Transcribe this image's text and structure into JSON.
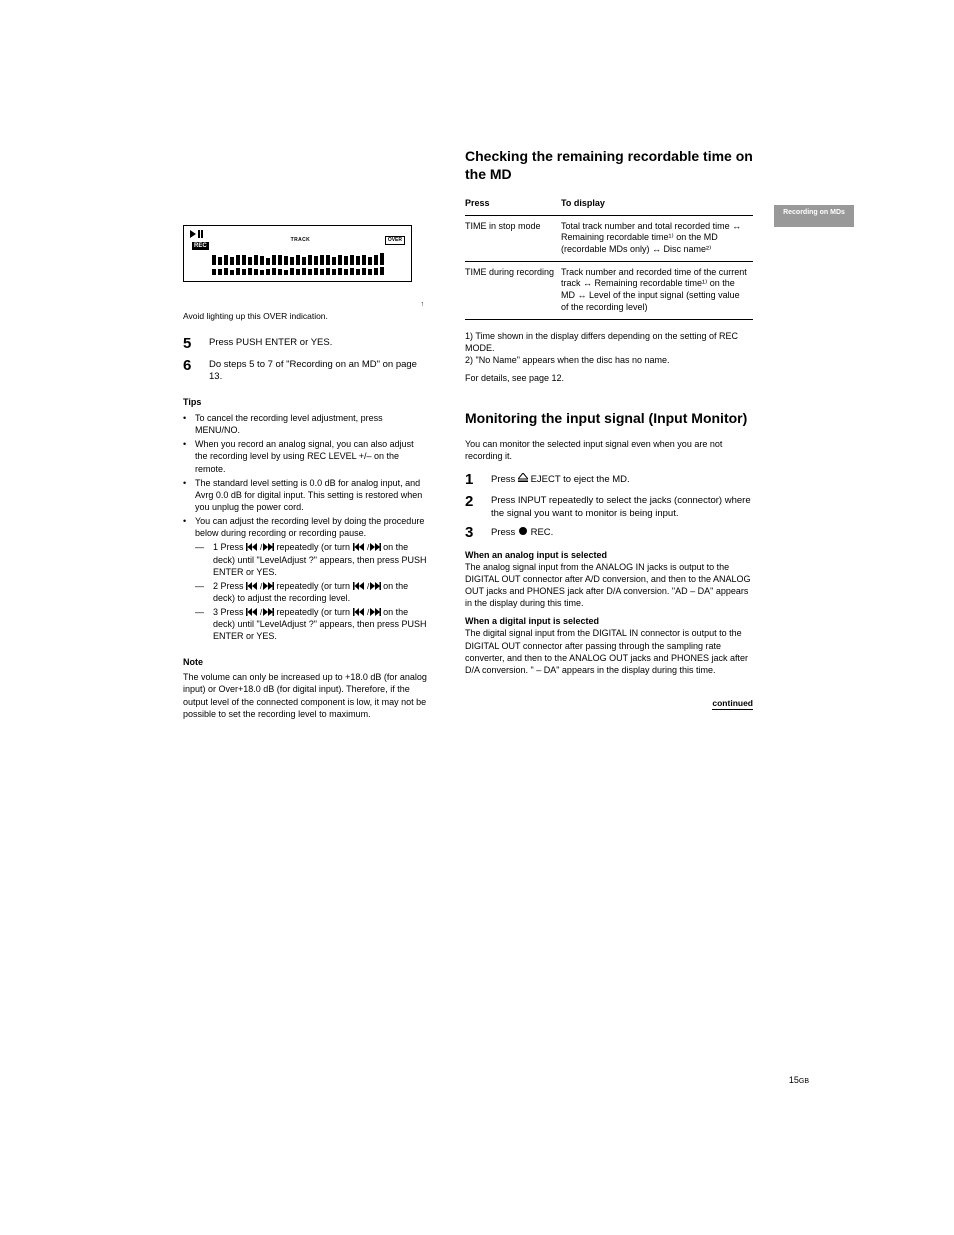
{
  "page_number": "15",
  "page_suffix": "GB",
  "edge_tab_label": "Recording on MDs",
  "continued_label": "continued",
  "lcd": {
    "track_label": "TRACK",
    "rec_label": "REC",
    "over_label": "OVER",
    "over_caption": "Avoid lighting up this OVER indication.",
    "bar_heights_row1": [
      10,
      8,
      10,
      8,
      10,
      10,
      8,
      10,
      9,
      7,
      10,
      10,
      9,
      8,
      10,
      8,
      10,
      9,
      10,
      10,
      8,
      10,
      9,
      10,
      9,
      10,
      8,
      10,
      12
    ],
    "bar_heights_row2": [
      6,
      6,
      7,
      5,
      7,
      6,
      7,
      6,
      5,
      6,
      7,
      6,
      5,
      7,
      6,
      7,
      6,
      7,
      6,
      7,
      6,
      7,
      6,
      7,
      6,
      7,
      6,
      7,
      8
    ]
  },
  "left": {
    "steps": [
      {
        "num": "5",
        "text": "Press PUSH ENTER or YES."
      },
      {
        "num": "6",
        "text": "Do steps 5 to 7 of \"Recording on an MD\" on page 13."
      }
    ],
    "tips_head": "Tips",
    "tips": [
      "To cancel the recording level adjustment, press MENU/NO.",
      "When you record an analog signal, you can also adjust the recording level by using REC LEVEL +/– on the remote.",
      "The standard level setting is 0.0 dB for analog input, and Avrg 0.0 dB for digital input. This setting is restored when you unplug the power cord.",
      "You can adjust the recording level by doing the procedure below during recording or recording pause."
    ],
    "dial_steps": [
      {
        "pre": "1 Press ",
        "post1": " repeatedly (or turn ",
        "post2": " on the deck) until \"LevelAdjust ?\" appears, then press PUSH ENTER or YES."
      },
      {
        "pre": "2 Press ",
        "post1": " repeatedly (or turn ",
        "post2": " on the deck) to adjust the recording level."
      },
      {
        "pre": "3 Press ",
        "post1": " repeatedly (or turn ",
        "post2": " on the deck) until \"LevelAdjust ?\" appears, then press PUSH ENTER or YES."
      }
    ],
    "note_head": "Note",
    "note_body": "The volume can only be increased up to +18.0 dB (for analog input) or Over+18.0 dB (for digital input). Therefore, if the output level of the connected component is low, it may not be possible to set the recording level to maximum."
  },
  "right": {
    "heading1": "Checking the remaining recordable time on the MD",
    "table_head": [
      "Press",
      "To display"
    ],
    "table_rows": [
      [
        "TIME in stop mode",
        "Total track number and total recorded time → Remaining recordable time¹⁾ on the MD (recordable MDs only) → Disc name²⁾"
      ],
      [
        "TIME during recording",
        "Track number and recorded time of the current track → Remaining recordable time¹⁾ on the MD → Level of the input signal (setting value of the recording level)"
      ]
    ],
    "footnotes": [
      "1) Time shown in the display differs depending on the setting of REC MODE.",
      "2) \"No Name\" appears when the disc has no name."
    ],
    "extra_note": "For details, see page 12.",
    "heading2": "Monitoring the input signal (Input Monitor)",
    "intro2": "You can monitor the selected input signal even when you are not recording it.",
    "steps2": [
      {
        "num": "1",
        "pre": "Press ",
        "post": " EJECT to eject the MD."
      },
      {
        "num": "2",
        "pre": "Press INPUT repeatedly to select the jacks (connector) where the signal you want to monitor is being input.",
        "post": ""
      },
      {
        "num": "3",
        "pre": "Press ",
        "post": " REC."
      }
    ],
    "after_steps": {
      "analog_head": "When an analog input is selected",
      "analog_body": "The analog signal input from the ANALOG IN jacks is output to the DIGITAL OUT connector after A/D conversion, and then to the ANALOG OUT jacks and PHONES jack after D/A conversion. \"AD – DA\" appears in the display during this time.",
      "digital_head": "When a digital input is selected",
      "digital_body": "The digital signal input from the DIGITAL IN connector is output to the DIGITAL OUT connector after passing through the sampling rate converter, and then to the ANALOG OUT jacks and PHONES jack after D/A conversion. \" – DA\" appears in the display during this time."
    }
  }
}
